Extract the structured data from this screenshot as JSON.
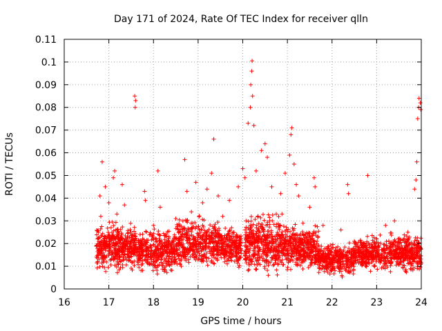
{
  "chart_data": {
    "type": "scatter",
    "title": "Day 171 of 2024, Rate Of TEC Index for receiver qlln",
    "xlabel": "GPS time / hours",
    "ylabel": "ROTI / TECUs",
    "xlim": [
      16,
      24
    ],
    "ylim": [
      0,
      0.11
    ],
    "x_ticks": [
      16,
      17,
      18,
      19,
      20,
      21,
      22,
      23,
      24
    ],
    "x_tick_labels": [
      "16",
      "17",
      "18",
      "19",
      "20",
      "21",
      "22",
      "23",
      "24"
    ],
    "y_ticks": [
      0,
      0.01,
      0.02,
      0.03,
      0.04,
      0.05,
      0.06,
      0.07,
      0.08,
      0.09,
      0.1,
      0.11
    ],
    "y_tick_labels": [
      "0",
      "0.01",
      "0.02",
      "0.03",
      "0.04",
      "0.05",
      "0.06",
      "0.07",
      "0.08",
      "0.09",
      "0.1",
      "0.11"
    ],
    "grid": true,
    "marker": "+",
    "color": "#ff0000",
    "series": [
      {
        "name": "ROTI",
        "points": [
          [
            16.75,
            0.012
          ],
          [
            16.77,
            0.025
          ],
          [
            16.8,
            0.041
          ],
          [
            16.82,
            0.032
          ],
          [
            16.85,
            0.056
          ],
          [
            16.88,
            0.018
          ],
          [
            16.92,
            0.045
          ],
          [
            16.95,
            0.021
          ],
          [
            17.0,
            0.038
          ],
          [
            17.05,
            0.027
          ],
          [
            17.1,
            0.049
          ],
          [
            17.13,
            0.052
          ],
          [
            17.18,
            0.033
          ],
          [
            17.25,
            0.014
          ],
          [
            17.3,
            0.046
          ],
          [
            17.35,
            0.037
          ],
          [
            17.4,
            0.022
          ],
          [
            17.5,
            0.019
          ],
          [
            17.58,
            0.085
          ],
          [
            17.59,
            0.08
          ],
          [
            17.6,
            0.083
          ],
          [
            17.7,
            0.024
          ],
          [
            17.8,
            0.043
          ],
          [
            17.82,
            0.039
          ],
          [
            17.9,
            0.017
          ],
          [
            18.0,
            0.028
          ],
          [
            18.1,
            0.052
          ],
          [
            18.15,
            0.036
          ],
          [
            18.3,
            0.021
          ],
          [
            18.5,
            0.031
          ],
          [
            18.6,
            0.026
          ],
          [
            18.7,
            0.057
          ],
          [
            18.75,
            0.043
          ],
          [
            18.85,
            0.034
          ],
          [
            18.95,
            0.047
          ],
          [
            19.1,
            0.038
          ],
          [
            19.2,
            0.044
          ],
          [
            19.3,
            0.051
          ],
          [
            19.35,
            0.066
          ],
          [
            19.45,
            0.041
          ],
          [
            19.55,
            0.032
          ],
          [
            19.7,
            0.039
          ],
          [
            19.9,
            0.045
          ],
          [
            20.0,
            0.053
          ],
          [
            20.05,
            0.049
          ],
          [
            20.12,
            0.073
          ],
          [
            20.17,
            0.08
          ],
          [
            20.18,
            0.09
          ],
          [
            20.2,
            0.096
          ],
          [
            20.21,
            0.1005
          ],
          [
            20.22,
            0.085
          ],
          [
            20.25,
            0.072
          ],
          [
            20.3,
            0.052
          ],
          [
            20.42,
            0.061
          ],
          [
            20.5,
            0.064
          ],
          [
            20.55,
            0.058
          ],
          [
            20.65,
            0.045
          ],
          [
            20.75,
            0.033
          ],
          [
            20.85,
            0.042
          ],
          [
            20.95,
            0.051
          ],
          [
            21.05,
            0.059
          ],
          [
            21.08,
            0.068
          ],
          [
            21.1,
            0.071
          ],
          [
            21.15,
            0.055
          ],
          [
            21.2,
            0.046
          ],
          [
            21.25,
            0.041
          ],
          [
            21.35,
            0.029
          ],
          [
            21.5,
            0.036
          ],
          [
            21.6,
            0.049
          ],
          [
            21.62,
            0.045
          ],
          [
            21.8,
            0.028
          ],
          [
            22.0,
            0.018
          ],
          [
            22.2,
            0.026
          ],
          [
            22.35,
            0.046
          ],
          [
            22.37,
            0.042
          ],
          [
            22.5,
            0.021
          ],
          [
            22.8,
            0.05
          ],
          [
            23.0,
            0.022
          ],
          [
            23.2,
            0.028
          ],
          [
            23.4,
            0.03
          ],
          [
            23.7,
            0.025
          ],
          [
            23.85,
            0.044
          ],
          [
            23.88,
            0.048
          ],
          [
            23.9,
            0.056
          ],
          [
            23.92,
            0.075
          ],
          [
            23.94,
            0.08
          ],
          [
            23.95,
            0.084
          ],
          [
            23.98,
            0.082
          ],
          [
            23.99,
            0.079
          ]
        ]
      }
    ],
    "dense_bands": [
      {
        "x_from": 16.72,
        "x_to": 17.6,
        "y_low": 0.005,
        "y_high": 0.032,
        "count": 420
      },
      {
        "x_from": 17.6,
        "x_to": 18.5,
        "y_low": 0.005,
        "y_high": 0.028,
        "count": 380
      },
      {
        "x_from": 18.5,
        "x_to": 19.5,
        "y_low": 0.006,
        "y_high": 0.034,
        "count": 430
      },
      {
        "x_from": 19.5,
        "x_to": 19.98,
        "y_low": 0.007,
        "y_high": 0.03,
        "count": 220
      },
      {
        "x_from": 20.05,
        "x_to": 20.9,
        "y_low": 0.004,
        "y_high": 0.036,
        "count": 430
      },
      {
        "x_from": 20.9,
        "x_to": 21.7,
        "y_low": 0.006,
        "y_high": 0.03,
        "count": 380
      },
      {
        "x_from": 21.7,
        "x_to": 22.5,
        "y_low": 0.004,
        "y_high": 0.022,
        "count": 340
      },
      {
        "x_from": 22.5,
        "x_to": 23.3,
        "y_low": 0.006,
        "y_high": 0.025,
        "count": 330
      },
      {
        "x_from": 23.3,
        "x_to": 24.0,
        "y_low": 0.006,
        "y_high": 0.026,
        "count": 330
      }
    ]
  }
}
